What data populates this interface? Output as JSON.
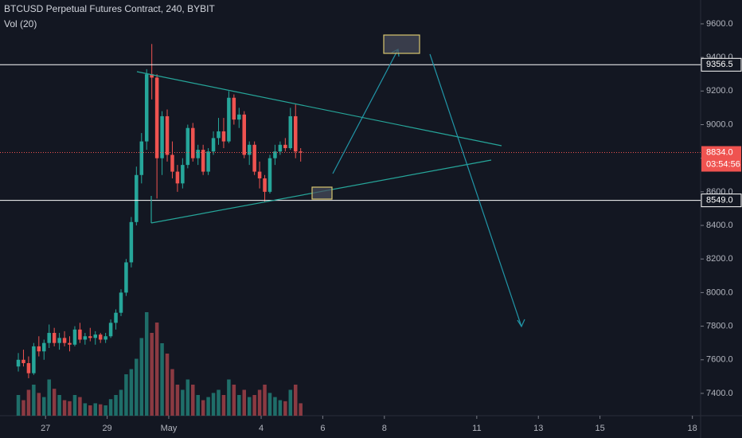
{
  "chart_data": {
    "type": "candlestick",
    "title": "BTCUSD Perpetual Futures Contract, 240, BYBIT",
    "volume_title": "Vol (20)",
    "open": [
      7560,
      7600,
      7580,
      7520,
      7680,
      7650,
      7700,
      7760,
      7700,
      7730,
      7700,
      7690,
      7780,
      7720,
      7740,
      7730,
      7750,
      7720,
      7740,
      7820,
      7880,
      8000,
      8180,
      8420,
      8700,
      8900,
      9300,
      9280,
      8800,
      9050,
      8820,
      8720,
      8650,
      8760,
      8980,
      8800,
      8850,
      8720,
      8840,
      8920,
      8960,
      8900,
      9160,
      9030,
      9060,
      8820,
      8880,
      8720,
      8680,
      8600,
      8800,
      8840,
      8880,
      8860,
      9050,
      8840
    ],
    "high": [
      7640,
      7660,
      7620,
      7700,
      7740,
      7720,
      7810,
      7790,
      7760,
      7770,
      7740,
      7800,
      7820,
      7760,
      7790,
      7770,
      7760,
      7760,
      7840,
      7900,
      8020,
      8200,
      8450,
      8750,
      8950,
      9330,
      9480,
      9300,
      9080,
      9090,
      8900,
      8760,
      8800,
      9000,
      9010,
      8880,
      8880,
      8860,
      8960,
      9040,
      9040,
      9200,
      9180,
      9100,
      9080,
      8900,
      8900,
      8780,
      8700,
      8820,
      8880,
      8900,
      8920,
      9100,
      9120,
      8860
    ],
    "low": [
      7530,
      7560,
      7490,
      7510,
      7620,
      7600,
      7670,
      7680,
      7660,
      7680,
      7650,
      7680,
      7700,
      7690,
      7710,
      7690,
      7700,
      7700,
      7730,
      7780,
      7860,
      7980,
      8150,
      8400,
      8650,
      8850,
      9150,
      8560,
      8700,
      8780,
      8680,
      8600,
      8620,
      8740,
      8780,
      8760,
      8700,
      8700,
      8820,
      8880,
      8860,
      8890,
      9000,
      8980,
      8800,
      8760,
      8700,
      8620,
      8540,
      8590,
      8760,
      8820,
      8840,
      8850,
      8800,
      8780
    ],
    "close": [
      7600,
      7580,
      7520,
      7680,
      7650,
      7700,
      7760,
      7700,
      7730,
      7700,
      7690,
      7780,
      7720,
      7740,
      7730,
      7750,
      7720,
      7740,
      7820,
      7880,
      8000,
      8180,
      8420,
      8700,
      8900,
      9300,
      9280,
      8800,
      9050,
      8820,
      8720,
      8650,
      8760,
      8980,
      8800,
      8850,
      8720,
      8840,
      8920,
      8960,
      8900,
      9160,
      9030,
      9060,
      8820,
      8880,
      8720,
      8680,
      8600,
      8800,
      8840,
      8880,
      8860,
      9050,
      8840,
      8834
    ],
    "volume": [
      20,
      15,
      25,
      30,
      22,
      18,
      35,
      26,
      20,
      15,
      14,
      20,
      18,
      12,
      10,
      12,
      11,
      10,
      16,
      20,
      25,
      40,
      45,
      55,
      75,
      100,
      80,
      90,
      70,
      60,
      45,
      30,
      25,
      35,
      30,
      20,
      15,
      18,
      22,
      25,
      20,
      35,
      30,
      20,
      25,
      18,
      20,
      25,
      30,
      22,
      18,
      15,
      14,
      25,
      30,
      12
    ],
    "xlim": [
      -3.57,
      132.9
    ],
    "xticks": [
      {
        "value": 5.3,
        "label": "27"
      },
      {
        "value": 17.3,
        "label": "29"
      },
      {
        "value": 29.3,
        "label": "May"
      },
      {
        "value": 47.3,
        "label": "4"
      },
      {
        "value": 59.3,
        "label": "6"
      },
      {
        "value": 71.3,
        "label": "8"
      },
      {
        "value": 89.3,
        "label": "11"
      },
      {
        "value": 101.3,
        "label": "13"
      },
      {
        "value": 113.3,
        "label": "15"
      },
      {
        "value": 131.3,
        "label": "18"
      }
    ],
    "ylim": [
      7267,
      9742
    ],
    "yticks": [
      {
        "value": 7400,
        "label": "7400.0"
      },
      {
        "value": 7600,
        "label": "7600.0"
      },
      {
        "value": 7800,
        "label": "7800.0"
      },
      {
        "value": 8000,
        "label": "8000.0"
      },
      {
        "value": 8200,
        "label": "8200.0"
      },
      {
        "value": 8400,
        "label": "8400.0"
      },
      {
        "value": 8600,
        "label": "8600.0"
      },
      {
        "value": 8800,
        "label": "8800.0"
      },
      {
        "value": 9000,
        "label": "9000.0"
      },
      {
        "value": 9200,
        "label": "9200.0"
      },
      {
        "value": 9400,
        "label": "9400.0"
      },
      {
        "value": 9600,
        "label": "9600.0"
      }
    ],
    "price_lines": [
      {
        "value": 9356.5,
        "label": "9356.5",
        "color": "#ffffff"
      },
      {
        "value": 8549,
        "label": "8549.0",
        "color": "#ffffff"
      },
      {
        "value": 8834,
        "label": "8834.0",
        "color": "#ef5350"
      }
    ],
    "countdown": "03:54:56",
    "up_color": "#26a69a",
    "down_color": "#ef5350",
    "volume_up_color": "#1f6e69",
    "volume_down_color": "#8b3a42"
  }
}
